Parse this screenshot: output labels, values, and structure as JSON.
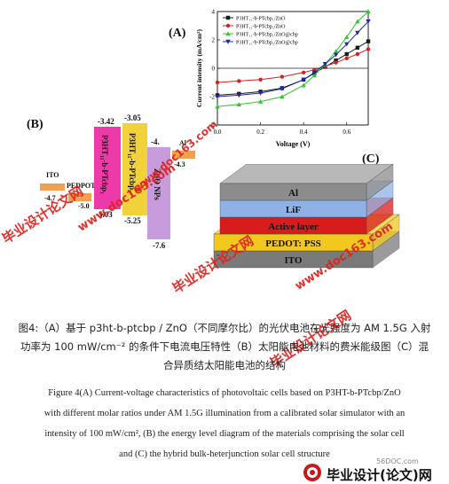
{
  "panel_a": {
    "label": "(A)",
    "chart_data": {
      "type": "line",
      "xlabel": "Voltage (V)",
      "ylabel": "Current intensity (mA/cm²)",
      "xlim": [
        0.0,
        0.7
      ],
      "ylim": [
        -4,
        4
      ],
      "xticks": [
        "0.0",
        "0.2",
        "0.4",
        "0.6"
      ],
      "yticks": [
        "-4",
        "-2",
        "0",
        "2",
        "4"
      ],
      "legend_position": "top-left",
      "series": [
        {
          "name": "P3HT₁₁-b-PTcbp₁/ZnO",
          "color": "#1a1a1a",
          "marker": "square",
          "x": [
            0.0,
            0.1,
            0.2,
            0.3,
            0.4,
            0.45,
            0.5,
            0.55,
            0.6,
            0.65,
            0.7
          ],
          "y": [
            -1.9,
            -1.8,
            -1.65,
            -1.4,
            -0.8,
            -0.35,
            0.1,
            0.55,
            1.0,
            1.45,
            1.9
          ]
        },
        {
          "name": "P3HT₁₁-b-PTcbp₂/ZnO",
          "color": "#d62020",
          "marker": "circle",
          "x": [
            0.0,
            0.1,
            0.2,
            0.3,
            0.4,
            0.45,
            0.5,
            0.55,
            0.6,
            0.65,
            0.7
          ],
          "y": [
            -1.0,
            -0.9,
            -0.8,
            -0.6,
            -0.3,
            -0.1,
            0.15,
            0.4,
            0.7,
            1.0,
            1.35
          ]
        },
        {
          "name": "P3HT₁₁-b-PTcbp₁/ZnO@cbp",
          "color": "#2ec72e",
          "marker": "triangle",
          "x": [
            0.0,
            0.1,
            0.2,
            0.3,
            0.4,
            0.45,
            0.5,
            0.55,
            0.6,
            0.65,
            0.7
          ],
          "y": [
            -2.7,
            -2.55,
            -2.35,
            -2.0,
            -1.2,
            -0.5,
            0.3,
            1.2,
            2.2,
            3.3,
            4.0
          ]
        },
        {
          "name": "P3HT₁₁-b-PTcbp₂/ZnO@cbp",
          "color": "#1c2aa8",
          "marker": "triangle-down",
          "x": [
            0.0,
            0.1,
            0.2,
            0.3,
            0.4,
            0.45,
            0.5,
            0.55,
            0.6,
            0.65,
            0.7
          ],
          "y": [
            -2.0,
            -1.9,
            -1.75,
            -1.45,
            -0.8,
            -0.3,
            0.3,
            0.95,
            1.7,
            2.5,
            3.3
          ]
        }
      ]
    }
  },
  "panel_b": {
    "label": "(B)",
    "levels": [
      {
        "name": "ITO",
        "value": "-4.7",
        "color": "#f0a050"
      },
      {
        "name": "PEDPOT",
        "value": "-5.0",
        "color": "#f0a050"
      },
      {
        "name": "P3HT₁₁-b-PTcbp₁",
        "top": "-3.42",
        "bottom": "-5.03",
        "color": "#ee3aa8"
      },
      {
        "name": "P3HT₁₁-b-PTcbp₂",
        "top": "-3.05",
        "bottom": "-5.25",
        "color": "#f2d23a"
      },
      {
        "name": "ZnO NPs",
        "top": "-4.",
        "bottom": "-7.6",
        "color": "#c79bdc"
      },
      {
        "name": "Al",
        "value": "-4.3",
        "color": "#f0a050"
      }
    ]
  },
  "panel_c": {
    "label": "(C)",
    "layers": [
      {
        "name": "Al",
        "color": "#8c8c8c",
        "top_color": "#b8b8b8"
      },
      {
        "name": "LiF",
        "color": "#8fb2e6",
        "top_color": "#b5ccef"
      },
      {
        "name": "Active layer",
        "color": "#d81c1c",
        "top_color": "#ee4a4a"
      },
      {
        "name": "PEDOT: PSS",
        "color": "#f2c81e",
        "top_color": "#f7dc62"
      },
      {
        "name": "ITO",
        "color": "#7a7a7a",
        "top_color": "#a8a8a8"
      }
    ]
  },
  "caption_cn": {
    "line1": "图4:（A）基于 p3ht-b-ptcbp / ZnO（不同摩尔比）的光伏电池在光强度为 AM 1.5G 入射",
    "line2": "功率为 100 mW/cm⁻² 的条件下电流电压特性（B）太阳能电池材料的费米能级图（C）混",
    "line3": "合异质结太阳能电池的结构"
  },
  "caption_en": {
    "line1": "Figure 4(A) Current-voltage characteristics of photovoltaic cells based on P3HT-b-PTcbp/ZnO",
    "line2": "with different molar ratios under AM 1.5G illumination from a calibrated solar simulator with an",
    "line3": "intensity of 100 mW/cm², (B) the energy level diagram of the materials comprising the solar cell",
    "line4": "and (C) the hybrid bulk-heterjunction solar cell structure"
  },
  "watermarks": {
    "w1": "毕业设计论文网",
    "w2": "www.doc163.com",
    "w3": "毕业设计论文网",
    "w4": "www.doc163.com",
    "w5": "毕业设计论文网",
    "w6": "www.doc163.com"
  },
  "footer_logo": {
    "site": "56DOC.com",
    "text": "毕业设计(论文)网"
  }
}
